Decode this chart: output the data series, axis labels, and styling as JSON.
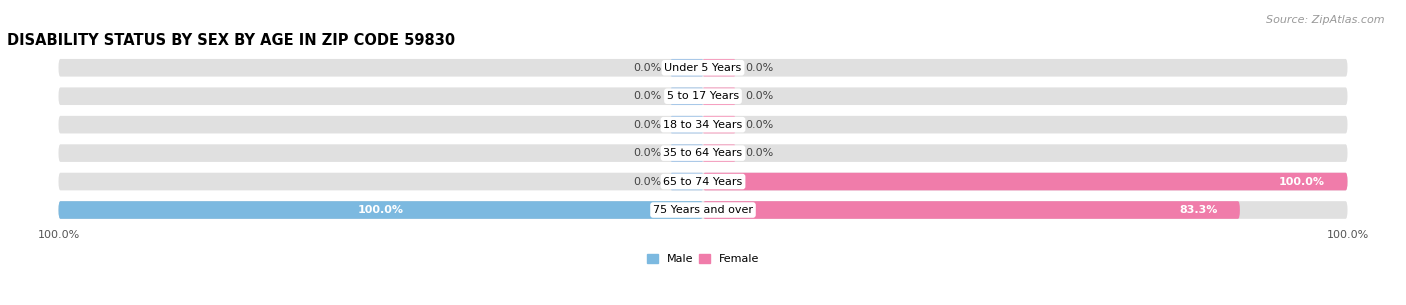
{
  "title": "DISABILITY STATUS BY SEX BY AGE IN ZIP CODE 59830",
  "source": "Source: ZipAtlas.com",
  "age_groups": [
    "Under 5 Years",
    "5 to 17 Years",
    "18 to 34 Years",
    "35 to 64 Years",
    "65 to 74 Years",
    "75 Years and over"
  ],
  "male_values": [
    0.0,
    0.0,
    0.0,
    0.0,
    0.0,
    100.0
  ],
  "female_values": [
    0.0,
    0.0,
    0.0,
    0.0,
    100.0,
    83.3
  ],
  "male_color": "#7cb9e0",
  "female_color": "#f07caa",
  "bar_bg_color": "#e0e0e0",
  "bar_stub_male": "#a8c8e8",
  "bar_stub_female": "#f5a0c0",
  "title_fontsize": 10.5,
  "label_fontsize": 8,
  "tick_fontsize": 8,
  "source_fontsize": 8
}
